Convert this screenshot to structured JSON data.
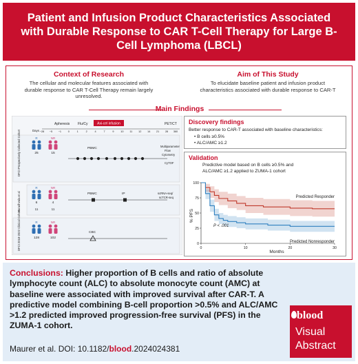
{
  "header": {
    "title": "Patient and Infusion Product Characteristics Associated with Durable Response to CAR T-Cell Therapy for Large B-Cell Lymphoma (LBCL)"
  },
  "context": {
    "title": "Context of Research",
    "text": "The cellular and molecular features associated with durable response to CAR T-Cell Therapy remain largely unresolved."
  },
  "aim": {
    "title": "Aim of This Study",
    "text": "To elucidate baseline patient and infusion product characteristics associated with durable response to CAR-T"
  },
  "main_findings": {
    "title": "Main Findings"
  },
  "diagram": {
    "timeline": {
      "apheresis": "Apheresis",
      "flu_cy": "Flu/Cy",
      "axicel": "Axi-cel infusion",
      "pet": "PET/CT",
      "days_label": "Days",
      "days": [
        "−28",
        "−5",
        "−1",
        "0",
        "1",
        "2",
        "4",
        "7",
        "9",
        "10",
        "11",
        "12",
        "14",
        "21",
        "28",
        "360"
      ]
    },
    "cohorts": [
      {
        "label": "DFCI Prospectively Collected Cohort",
        "r": "R",
        "nr": "NR",
        "n_r": "25",
        "n_nr": "15",
        "assay_left": "PBMC",
        "assay_right": [
          "Multiparameter",
          "Flow",
          "Cytometry",
          "CyTOF"
        ]
      },
      {
        "label": "Haradhvala et al",
        "r": "R",
        "nr": "NR",
        "n_r": "6",
        "n_nr": "4",
        "sub_r": "11",
        "sub_nr": "11",
        "assay_left": "PBMC",
        "assay_mid": "IP",
        "assay_right": [
          "scRNA-seq/",
          "scTCR-seq"
        ]
      },
      {
        "label": "DFCI 2018-2022 Clinical Cohort",
        "r": "R",
        "nr": "NR",
        "n_r": "128",
        "n_nr": "102",
        "assay_left": "CBC"
      }
    ]
  },
  "discovery": {
    "title": "Discovery findings",
    "intro": "Better response to CAR-T associated with baseline characteristics:",
    "bullets": [
      "B cells ≥0.5%",
      "ALC/AMC ≥1.2"
    ]
  },
  "validation": {
    "title": "Validation",
    "text": "Predictive model based on B cells ≥0.5% and ALC/AMC ≥1.2 applied to ZUMA-1 cohort"
  },
  "km_chart": {
    "ylabel": "% PFS",
    "xlabel": "Months",
    "yticks": [
      "0",
      "25",
      "50",
      "75",
      "100"
    ],
    "xticks": [
      "0",
      "10",
      "20",
      "30"
    ],
    "pvalue": "P < .001",
    "colors": {
      "responder": "#c0392b",
      "nonresponder": "#2f80c0"
    }
  },
  "chart_data": {
    "type": "line",
    "title": "",
    "xlabel": "Months",
    "ylabel": "% PFS",
    "xlim": [
      0,
      30
    ],
    "ylim": [
      0,
      100
    ],
    "series": [
      {
        "name": "Predicted Responder",
        "x": [
          0,
          1,
          2,
          3,
          4,
          6,
          8,
          10,
          14,
          20,
          25,
          30
        ],
        "y": [
          100,
          92,
          85,
          79,
          74,
          70,
          66,
          62,
          60,
          58,
          57,
          57
        ],
        "ci_upper": [
          100,
          98,
          94,
          89,
          85,
          82,
          78,
          75,
          73,
          71,
          70,
          70
        ],
        "ci_lower": [
          100,
          85,
          75,
          68,
          63,
          58,
          55,
          50,
          47,
          45,
          44,
          44
        ]
      },
      {
        "name": "Predicted Nonresponder",
        "x": [
          0,
          1,
          2,
          3,
          4,
          5,
          6,
          8,
          10,
          15,
          20,
          25,
          30
        ],
        "y": [
          100,
          82,
          62,
          47,
          41,
          38,
          36,
          34,
          32,
          30,
          28,
          28,
          28
        ],
        "ci_upper": [
          100,
          89,
          72,
          57,
          50,
          47,
          45,
          43,
          41,
          39,
          37,
          37,
          37
        ],
        "ci_lower": [
          100,
          73,
          52,
          37,
          32,
          29,
          27,
          25,
          23,
          21,
          19,
          19,
          19
        ]
      }
    ]
  },
  "conclusions": {
    "label": "Conclusions:",
    "text": "Higher proportion of B cells and ratio of absolute lymphocyte count (ALC) to absolute monocyte count (AMC) at baseline were associated with improved survival after CAR-T. A predictive model combining B-cell proportion >0.5% and ALC/AMC >1.2 predicted improved progression-free survival (PFS) in the ZUMA-1 cohort."
  },
  "citation": {
    "prefix": "Maurer et al. DOI: 10.1182/",
    "journal": "blood",
    "suffix": ".2024024381"
  },
  "badge": {
    "brand": "blood",
    "line1": "Visual",
    "line2": "Abstract"
  },
  "colors": {
    "brand_red": "#c8102e",
    "conclusion_bg": "#e3edf7",
    "responder_blue": "#2f6fb3",
    "nonresponder_pink": "#d0457a"
  }
}
